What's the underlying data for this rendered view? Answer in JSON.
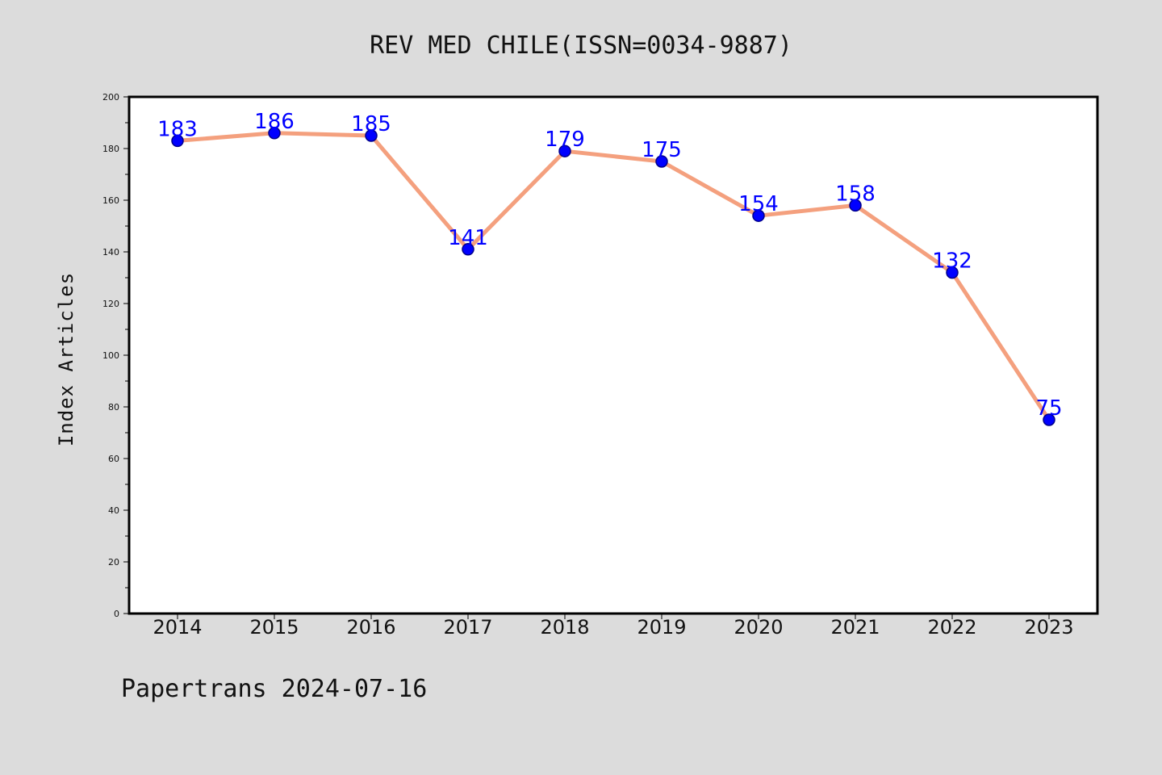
{
  "title": "REV MED CHILE(ISSN=0034-9887)",
  "footer": "Papertrans 2024-07-16",
  "colors": {
    "background": "#dcdcdc",
    "plot_background": "#ffffff",
    "line": "#f4a07e",
    "marker": "#0000ff",
    "marker_edge": "#00008b",
    "data_label": "#0000ff"
  },
  "chart_data": {
    "type": "line",
    "title": "REV MED CHILE(ISSN=0034-9887)",
    "xlabel": "",
    "ylabel": "Index Articles",
    "categories": [
      "2014",
      "2015",
      "2016",
      "2017",
      "2018",
      "2019",
      "2020",
      "2021",
      "2022",
      "2023"
    ],
    "values": [
      183,
      186,
      185,
      141,
      179,
      175,
      154,
      158,
      132,
      75
    ],
    "ylim": [
      0,
      200
    ],
    "yticks": [
      0,
      20,
      40,
      60,
      80,
      100,
      120,
      140,
      160,
      180,
      200
    ],
    "ytick_labels": [
      "0",
      "20",
      "40",
      "60",
      "80",
      "100",
      "120",
      "140",
      "160",
      "180",
      "200"
    ],
    "grid": false,
    "data_labels": true
  }
}
